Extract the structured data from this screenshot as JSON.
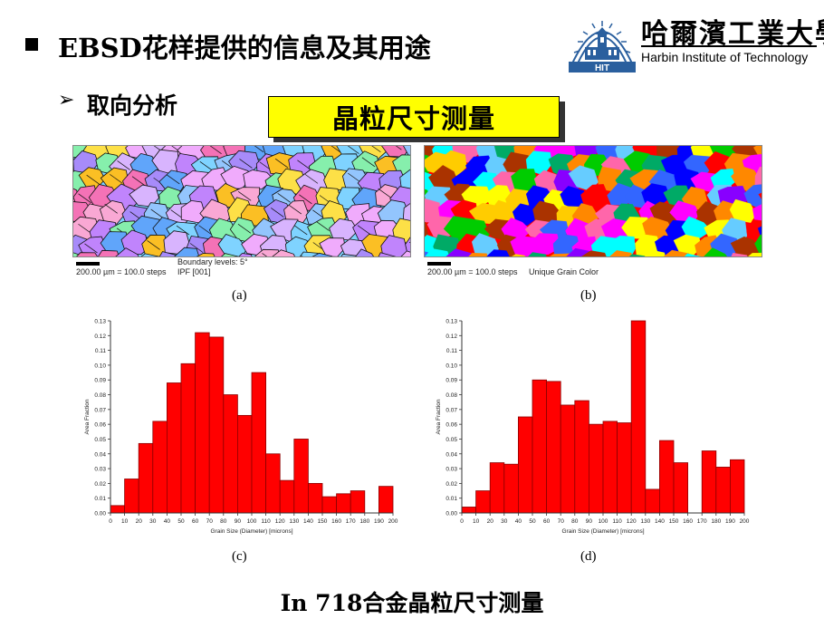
{
  "header": {
    "title": "EBSD花样提供的信息及其用途",
    "bullet_arrow": "➢",
    "subtitle": "取向分析",
    "callout": "晶粒尺寸测量"
  },
  "logo": {
    "chinese_name": "哈爾濱工業大學",
    "english_name": "Harbin Institute of Technology",
    "badge_text": "HIT"
  },
  "micrographs": [
    {
      "scale_text": "200.00 µm = 100.0 steps",
      "boundary_text": "Boundary levels: 5°",
      "map_text": "IPF [001]",
      "panel_label": "(a)"
    },
    {
      "scale_text": "200.00 µm = 100.0 steps",
      "map_text": "Unique Grain Color",
      "panel_label": "(b)"
    }
  ],
  "footer": {
    "caption": "In 718合金晶粒尺寸测量"
  },
  "colors": {
    "callout_bg": "#ffff00",
    "bar_fill": "#ff0000",
    "bar_stroke": "#8b0000",
    "logo_blue": "#2a5f9e"
  },
  "chart_data": [
    {
      "type": "bar",
      "panel_label": "(c)",
      "title": "",
      "xlabel": "Grain Size (Diameter) [microns]",
      "ylabel": "Area Fraction",
      "bin_width": 10,
      "bin_starts": [
        0,
        10,
        20,
        30,
        40,
        50,
        60,
        70,
        80,
        90,
        100,
        110,
        120,
        130,
        140,
        150,
        160,
        170,
        180,
        190
      ],
      "values": [
        0.005,
        0.023,
        0.047,
        0.062,
        0.088,
        0.101,
        0.122,
        0.119,
        0.08,
        0.066,
        0.095,
        0.04,
        0.022,
        0.05,
        0.02,
        0.011,
        0.013,
        0.015,
        0.0,
        0.018
      ],
      "xlim": [
        0,
        200
      ],
      "ylim": [
        0,
        0.13
      ],
      "x_ticks": [
        "0",
        "10",
        "20",
        "30",
        "40",
        "50",
        "60",
        "70",
        "80",
        "90",
        "100",
        "110",
        "120",
        "130",
        "140",
        "150",
        "160",
        "170",
        "180",
        "190",
        "200"
      ],
      "y_ticks": [
        "0.00",
        "0.01",
        "0.02",
        "0.03",
        "0.04",
        "0.05",
        "0.06",
        "0.07",
        "0.08",
        "0.09",
        "0.10",
        "0.11",
        "0.12",
        "0.13"
      ],
      "grid": false
    },
    {
      "type": "bar",
      "panel_label": "(d)",
      "title": "",
      "xlabel": "Grain Size (Diameter) [microns]",
      "ylabel": "Area Fraction",
      "bin_width": 10,
      "bin_starts": [
        0,
        10,
        20,
        30,
        40,
        50,
        60,
        70,
        80,
        90,
        100,
        110,
        120,
        130,
        140,
        150,
        160,
        170,
        180,
        190
      ],
      "values": [
        0.004,
        0.015,
        0.034,
        0.033,
        0.065,
        0.09,
        0.089,
        0.073,
        0.076,
        0.06,
        0.062,
        0.061,
        0.13,
        0.016,
        0.049,
        0.034,
        0.0,
        0.042,
        0.031,
        0.036
      ],
      "xlim": [
        0,
        200
      ],
      "ylim": [
        0,
        0.13
      ],
      "x_ticks": [
        "0",
        "10",
        "20",
        "30",
        "40",
        "50",
        "60",
        "70",
        "80",
        "90",
        "100",
        "110",
        "120",
        "130",
        "140",
        "150",
        "160",
        "170",
        "180",
        "190",
        "200"
      ],
      "y_ticks": [
        "0.00",
        "0.01",
        "0.02",
        "0.03",
        "0.04",
        "0.05",
        "0.06",
        "0.07",
        "0.08",
        "0.09",
        "0.10",
        "0.11",
        "0.12",
        "0.13"
      ],
      "grid": false
    }
  ]
}
